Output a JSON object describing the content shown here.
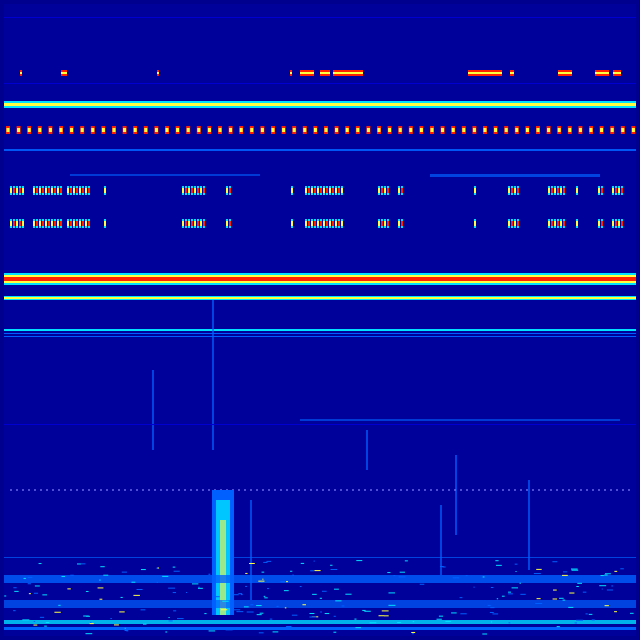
{
  "display": {
    "type": "spectrogram-waterfall",
    "colormap": "jet",
    "colors": {
      "background": "#00008f",
      "low": "#0000d0",
      "mid_low": "#0060ff",
      "mid": "#00e0ff",
      "mid_high": "#ffff40",
      "high": "#ff2000"
    }
  }
}
